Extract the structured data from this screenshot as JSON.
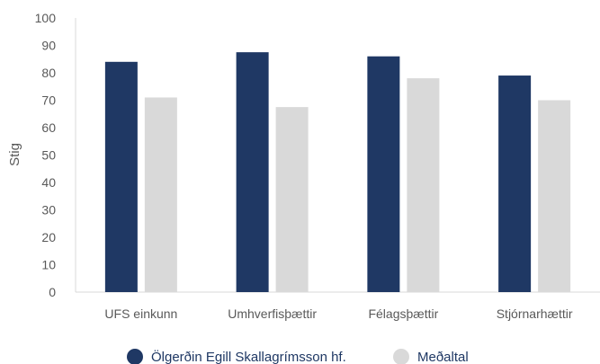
{
  "chart_data": {
    "type": "bar",
    "title": "",
    "xlabel": "",
    "ylabel": "Stig",
    "ylim": [
      0,
      100
    ],
    "yticks": [
      0,
      10,
      20,
      30,
      40,
      50,
      60,
      70,
      80,
      90,
      100
    ],
    "categories": [
      "UFS einkunn",
      "Umhverfisþættir",
      "Félagsþættir",
      "Stjórnarhættir"
    ],
    "series": [
      {
        "name": "Ölgerðin Egill Skallagrímsson hf.",
        "values": [
          84,
          87.5,
          86,
          79
        ],
        "color": "#1f3864"
      },
      {
        "name": "Meðaltal",
        "values": [
          71,
          67.5,
          78,
          70
        ],
        "color": "#d9d9d9"
      }
    ],
    "grid": false,
    "legend": "bottom"
  }
}
